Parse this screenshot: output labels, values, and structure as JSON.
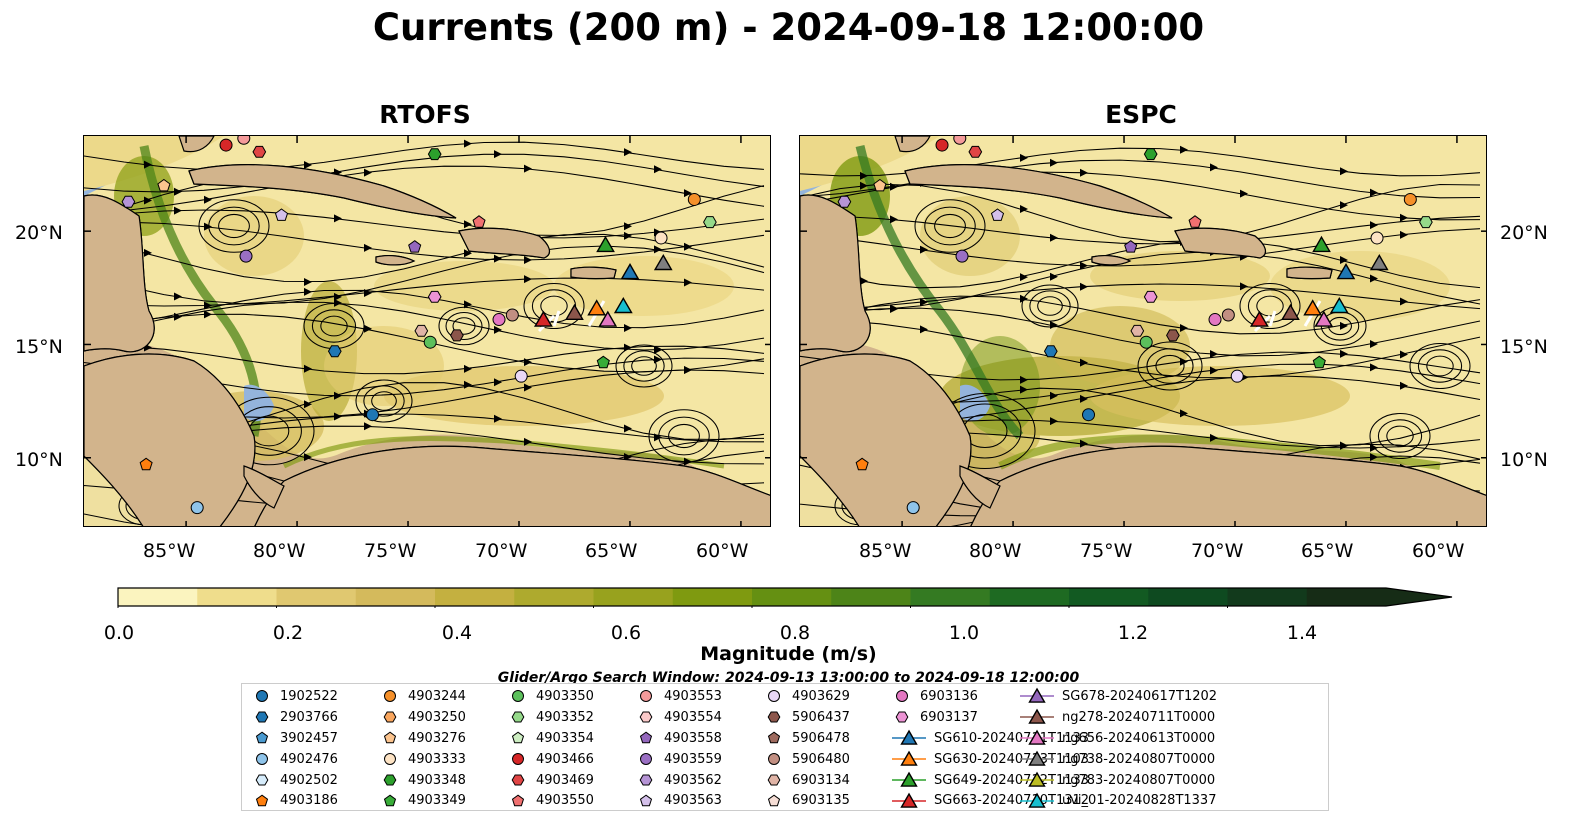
{
  "title": "Currents (200 m) - 2024-09-18 12:00:00",
  "panels": [
    {
      "id": "rtofs",
      "title": "RTOFS"
    },
    {
      "id": "espc",
      "title": "ESPC"
    }
  ],
  "axes": {
    "lon_labels": [
      "85°W",
      "80°W",
      "75°W",
      "70°W",
      "65°W",
      "60°W"
    ],
    "lat_labels": [
      "20°N",
      "15°N",
      "10°N"
    ]
  },
  "colorbar": {
    "label": "Magnitude (m/s)",
    "tick_labels": [
      "0.0",
      "0.2",
      "0.4",
      "0.6",
      "0.8",
      "1.0",
      "1.2",
      "1.4"
    ],
    "colors": [
      "#fbf4bf",
      "#efdd8c",
      "#e0c870",
      "#d4ba5c",
      "#c4b040",
      "#aeaa2e",
      "#98a21e",
      "#7f9a10",
      "#659012",
      "#4d8418",
      "#347a22",
      "#1e6a22",
      "#125a22",
      "#0e4a20",
      "#123a1c",
      "#162c16"
    ],
    "extend": "max"
  },
  "search_window": "Glider/Argo Search Window: 2024-09-13 13:00:00 to 2024-09-18 12:00:00",
  "legend": {
    "items": [
      {
        "label": "1902522",
        "marker": "circle",
        "color": "#1f77b4"
      },
      {
        "label": "2903766",
        "marker": "hexagon",
        "color": "#1f77b4"
      },
      {
        "label": "3902457",
        "marker": "pentagon",
        "color": "#4a9ad0"
      },
      {
        "label": "4902476",
        "marker": "circle",
        "color": "#8fc4ea"
      },
      {
        "label": "4902502",
        "marker": "hexagon",
        "color": "#d6ecfb"
      },
      {
        "label": "4903186",
        "marker": "pentagon",
        "color": "#ff7f0e"
      },
      {
        "label": "4903244",
        "marker": "circle",
        "color": "#f5902a"
      },
      {
        "label": "4903250",
        "marker": "hexagon",
        "color": "#f9a65e"
      },
      {
        "label": "4903276",
        "marker": "pentagon",
        "color": "#fcc48e"
      },
      {
        "label": "4903333",
        "marker": "circle",
        "color": "#fde3c4"
      },
      {
        "label": "4903348",
        "marker": "hexagon",
        "color": "#2ca02c"
      },
      {
        "label": "4903349",
        "marker": "pentagon",
        "color": "#38ac38"
      },
      {
        "label": "4903350",
        "marker": "circle",
        "color": "#5cc05c"
      },
      {
        "label": "4903352",
        "marker": "hexagon",
        "color": "#95d98a"
      },
      {
        "label": "4903354",
        "marker": "pentagon",
        "color": "#cdeec2"
      },
      {
        "label": "4903466",
        "marker": "circle",
        "color": "#d62728"
      },
      {
        "label": "4903469",
        "marker": "hexagon",
        "color": "#e04545"
      },
      {
        "label": "4903550",
        "marker": "pentagon",
        "color": "#f07070"
      },
      {
        "label": "4903553",
        "marker": "circle",
        "color": "#f49a9a"
      },
      {
        "label": "4903554",
        "marker": "hexagon",
        "color": "#fbcaca"
      },
      {
        "label": "4903558",
        "marker": "pentagon",
        "color": "#9467bd"
      },
      {
        "label": "4903559",
        "marker": "circle",
        "color": "#9a6fc3"
      },
      {
        "label": "4903562",
        "marker": "hexagon",
        "color": "#b694d6"
      },
      {
        "label": "4903563",
        "marker": "pentagon",
        "color": "#d4c0ea"
      },
      {
        "label": "4903629",
        "marker": "circle",
        "color": "#ead8f6"
      },
      {
        "label": "5906437",
        "marker": "hexagon",
        "color": "#8c564b"
      },
      {
        "label": "5906478",
        "marker": "pentagon",
        "color": "#9e6a5e"
      },
      {
        "label": "5906480",
        "marker": "circle",
        "color": "#c28f82"
      },
      {
        "label": "6903134",
        "marker": "hexagon",
        "color": "#e0b4a6"
      },
      {
        "label": "6903135",
        "marker": "pentagon",
        "color": "#f6ded6"
      },
      {
        "label": "6903136",
        "marker": "circle",
        "color": "#e377c2"
      },
      {
        "label": "6903137",
        "marker": "hexagon",
        "color": "#ec93d4"
      },
      {
        "label": "SG610-20240711T1133",
        "marker": "triangle",
        "color": "#1f77b4"
      },
      {
        "label": "SG630-20240713T1103",
        "marker": "triangle",
        "color": "#ff7f0e"
      },
      {
        "label": "SG649-20240712T1133",
        "marker": "triangle",
        "color": "#2ca02c"
      },
      {
        "label": "SG663-20240710T1312",
        "marker": "triangle",
        "color": "#d62728"
      },
      {
        "label": "SG678-20240617T1202",
        "marker": "triangle",
        "color": "#9467bd"
      },
      {
        "label": "ng278-20240711T0000",
        "marker": "triangle",
        "color": "#8c564b"
      },
      {
        "label": "ng656-20240613T0000",
        "marker": "triangle",
        "color": "#e377c2"
      },
      {
        "label": "ng738-20240807T0000",
        "marker": "triangle",
        "color": "#7f7f7f"
      },
      {
        "label": "ng783-20240807T0000",
        "marker": "triangle",
        "color": "#bcbd22"
      },
      {
        "label": "uvi_01-20240828T1337",
        "marker": "triangle",
        "color": "#17becf"
      }
    ]
  },
  "colors": {
    "land": "#d2b48c",
    "shelf_water": "#94b4dc",
    "coastline": "#000000"
  },
  "map_markers": [
    {
      "label": "1902522",
      "lon": -76.6,
      "lat": 11.9
    },
    {
      "label": "2903766",
      "lon": -78.3,
      "lat": 14.7
    },
    {
      "label": "4902476",
      "lon": -84.5,
      "lat": 7.8
    },
    {
      "label": "4903186",
      "lon": -86.8,
      "lat": 9.7
    },
    {
      "label": "4903244",
      "lon": -62.1,
      "lat": 21.4
    },
    {
      "label": "4903276",
      "lon": -86.0,
      "lat": 22.0
    },
    {
      "label": "4903333",
      "lon": -63.6,
      "lat": 19.7
    },
    {
      "label": "4903348",
      "lon": -73.8,
      "lat": 23.4
    },
    {
      "label": "4903349",
      "lon": -66.2,
      "lat": 14.2
    },
    {
      "label": "4903350",
      "lon": -74.0,
      "lat": 15.1
    },
    {
      "label": "4903352",
      "lon": -61.4,
      "lat": 20.4
    },
    {
      "label": "4903466",
      "lon": -83.2,
      "lat": 23.8
    },
    {
      "label": "4903469",
      "lon": -81.7,
      "lat": 23.5
    },
    {
      "label": "4903550",
      "lon": -71.8,
      "lat": 20.4
    },
    {
      "label": "4903553",
      "lon": -82.4,
      "lat": 24.1
    },
    {
      "label": "4903558",
      "lon": -74.7,
      "lat": 19.3
    },
    {
      "label": "4903559",
      "lon": -82.3,
      "lat": 18.9
    },
    {
      "label": "4903562",
      "lon": -87.6,
      "lat": 21.3
    },
    {
      "label": "4903563",
      "lon": -80.7,
      "lat": 20.7
    },
    {
      "label": "4903629",
      "lon": -69.9,
      "lat": 13.6
    },
    {
      "label": "5906437",
      "lon": -72.8,
      "lat": 15.4
    },
    {
      "label": "5906480",
      "lon": -70.3,
      "lat": 16.3
    },
    {
      "label": "6903134",
      "lon": -74.4,
      "lat": 15.6
    },
    {
      "label": "6903136",
      "lon": -70.9,
      "lat": 16.1
    },
    {
      "label": "6903137",
      "lon": -73.8,
      "lat": 17.1
    },
    {
      "label": "SG610-20240711T1133",
      "lon": -65.0,
      "lat": 18.2
    },
    {
      "label": "SG630-20240713T1103",
      "lon": -66.5,
      "lat": 16.6
    },
    {
      "label": "SG649-20240712T1133",
      "lon": -66.1,
      "lat": 19.4
    },
    {
      "label": "SG663-20240710T1312",
      "lon": -68.9,
      "lat": 16.1
    },
    {
      "label": "ng278-20240711T0000",
      "lon": -67.5,
      "lat": 16.4
    },
    {
      "label": "ng656-20240613T0000",
      "lon": -66.0,
      "lat": 16.1
    },
    {
      "label": "ng738-20240807T0000",
      "lon": -63.5,
      "lat": 18.6
    },
    {
      "label": "uvi_01-20240828T1337",
      "lon": -65.3,
      "lat": 16.7
    }
  ]
}
